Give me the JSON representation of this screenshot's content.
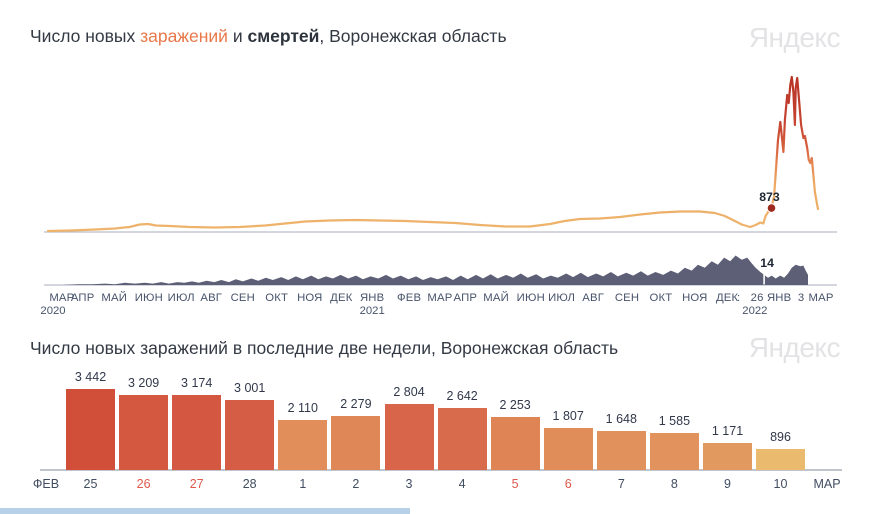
{
  "watermark": "Яндекс",
  "titles": {
    "c1": {
      "p1": "Число новых ",
      "em": "заражений",
      "p2": " и ",
      "strong": "смертей",
      "p3": ", Воронежская область"
    },
    "c2": "Число новых заражений в последние две недели, Воронежская область"
  },
  "colors": {
    "accent_infections": "#e8784a",
    "line_gradient": [
      [
        0,
        "#b83224"
      ],
      [
        0.3,
        "#c64431"
      ],
      [
        0.45,
        "#d55c3d"
      ],
      [
        0.58,
        "#e58a53"
      ],
      [
        0.7,
        "#ecaa64"
      ],
      [
        1,
        "#eeb46c"
      ]
    ],
    "deaths_fill": "#5d5f77",
    "marker_dot": "#9e2b20",
    "axis_line": "#b9bec8",
    "tick_text": "#47536b",
    "marker_text": "#1f2733",
    "weekend_label": "#e0584e",
    "watermark": "#e3e3e6"
  },
  "chart_data": [
    {
      "type": "line+area",
      "title": "Число новых заражений и смертей, Воронежская область",
      "legend": [
        "заражений",
        "смертей"
      ],
      "ylim_cases": [
        0,
        6000
      ],
      "ylim_deaths": [
        0,
        45
      ],
      "series": [
        {
          "name": "заражений",
          "points": [
            [
              0,
              19
            ],
            [
              0.029,
              37
            ],
            [
              0.061,
              74
            ],
            [
              0.087,
              112
            ],
            [
              0.106,
              167
            ],
            [
              0.119,
              260
            ],
            [
              0.13,
              279
            ],
            [
              0.14,
              223
            ],
            [
              0.158,
              205
            ],
            [
              0.184,
              167
            ],
            [
              0.217,
              149
            ],
            [
              0.249,
              167
            ],
            [
              0.282,
              223
            ],
            [
              0.308,
              298
            ],
            [
              0.334,
              372
            ],
            [
              0.366,
              409
            ],
            [
              0.399,
              428
            ],
            [
              0.431,
              409
            ],
            [
              0.464,
              390
            ],
            [
              0.496,
              353
            ],
            [
              0.529,
              316
            ],
            [
              0.561,
              242
            ],
            [
              0.594,
              186
            ],
            [
              0.626,
              186
            ],
            [
              0.652,
              279
            ],
            [
              0.671,
              390
            ],
            [
              0.691,
              465
            ],
            [
              0.717,
              483
            ],
            [
              0.743,
              539
            ],
            [
              0.769,
              632
            ],
            [
              0.795,
              706
            ],
            [
              0.821,
              744
            ],
            [
              0.847,
              744
            ],
            [
              0.866,
              688
            ],
            [
              0.879,
              576
            ],
            [
              0.892,
              390
            ],
            [
              0.901,
              260
            ],
            [
              0.912,
              167
            ],
            [
              0.919,
              242
            ],
            [
              0.925,
              335
            ],
            [
              0.929,
              297
            ],
            [
              0.932,
              576
            ],
            [
              0.936,
              762
            ],
            [
              0.9396,
              873
            ],
            [
              0.943,
              1320
            ],
            [
              0.945,
              2100
            ],
            [
              0.948,
              3400
            ],
            [
              0.951,
              4070
            ],
            [
              0.952,
              3848
            ],
            [
              0.955,
              2955
            ],
            [
              0.957,
              4145
            ],
            [
              0.96,
              5075
            ],
            [
              0.962,
              4777
            ],
            [
              0.964,
              5446
            ],
            [
              0.966,
              5744
            ],
            [
              0.968,
              5186
            ],
            [
              0.97,
              3959
            ],
            [
              0.971,
              5335
            ],
            [
              0.973,
              5707
            ],
            [
              0.975,
              5000
            ],
            [
              0.978,
              3959
            ],
            [
              0.981,
              3476
            ],
            [
              0.983,
              3550
            ],
            [
              0.986,
              3104
            ],
            [
              0.988,
              2658
            ],
            [
              0.99,
              2546
            ],
            [
              0.992,
              2732
            ],
            [
              0.994,
              2100
            ],
            [
              0.996,
              1468
            ],
            [
              0.999,
              985
            ],
            [
              1,
              836
            ]
          ]
        },
        {
          "name": "смертей",
          "points": [
            [
              0,
              0
            ],
            [
              0.018,
              0
            ],
            [
              0.039,
              1
            ],
            [
              0.057,
              1
            ],
            [
              0.074,
              2
            ],
            [
              0.087,
              1
            ],
            [
              0.1,
              3
            ],
            [
              0.113,
              2
            ],
            [
              0.126,
              3
            ],
            [
              0.136,
              2
            ],
            [
              0.147,
              4
            ],
            [
              0.157,
              2
            ],
            [
              0.168,
              4
            ],
            [
              0.177,
              3
            ],
            [
              0.187,
              5
            ],
            [
              0.196,
              3
            ],
            [
              0.206,
              6
            ],
            [
              0.216,
              4
            ],
            [
              0.225,
              7
            ],
            [
              0.235,
              4
            ],
            [
              0.244,
              8
            ],
            [
              0.253,
              5
            ],
            [
              0.264,
              9
            ],
            [
              0.273,
              6
            ],
            [
              0.283,
              10
            ],
            [
              0.292,
              7
            ],
            [
              0.303,
              11
            ],
            [
              0.312,
              7
            ],
            [
              0.322,
              12
            ],
            [
              0.331,
              8
            ],
            [
              0.342,
              13
            ],
            [
              0.351,
              8
            ],
            [
              0.361,
              12
            ],
            [
              0.37,
              9
            ],
            [
              0.38,
              14
            ],
            [
              0.39,
              9
            ],
            [
              0.4,
              13
            ],
            [
              0.409,
              8
            ],
            [
              0.419,
              12
            ],
            [
              0.429,
              9
            ],
            [
              0.439,
              14
            ],
            [
              0.448,
              9
            ],
            [
              0.458,
              13
            ],
            [
              0.468,
              8
            ],
            [
              0.478,
              12
            ],
            [
              0.487,
              7
            ],
            [
              0.497,
              11
            ],
            [
              0.506,
              8
            ],
            [
              0.517,
              12
            ],
            [
              0.526,
              7
            ],
            [
              0.536,
              13
            ],
            [
              0.545,
              8
            ],
            [
              0.556,
              14
            ],
            [
              0.565,
              9
            ],
            [
              0.575,
              15
            ],
            [
              0.584,
              9
            ],
            [
              0.595,
              14
            ],
            [
              0.604,
              10
            ],
            [
              0.614,
              16
            ],
            [
              0.623,
              10
            ],
            [
              0.634,
              15
            ],
            [
              0.643,
              9
            ],
            [
              0.653,
              13
            ],
            [
              0.662,
              10
            ],
            [
              0.673,
              16
            ],
            [
              0.682,
              11
            ],
            [
              0.692,
              17
            ],
            [
              0.701,
              11
            ],
            [
              0.712,
              16
            ],
            [
              0.721,
              12
            ],
            [
              0.731,
              18
            ],
            [
              0.74,
              12
            ],
            [
              0.751,
              17
            ],
            [
              0.76,
              13
            ],
            [
              0.77,
              19
            ],
            [
              0.779,
              13
            ],
            [
              0.789,
              18
            ],
            [
              0.799,
              14
            ],
            [
              0.809,
              20
            ],
            [
              0.818,
              16
            ],
            [
              0.827,
              24
            ],
            [
              0.836,
              20
            ],
            [
              0.844,
              28
            ],
            [
              0.853,
              24
            ],
            [
              0.862,
              33
            ],
            [
              0.87,
              28
            ],
            [
              0.878,
              38
            ],
            [
              0.886,
              33
            ],
            [
              0.893,
              41
            ],
            [
              0.901,
              35
            ],
            [
              0.908,
              38
            ],
            [
              0.914,
              30
            ],
            [
              0.919,
              24
            ],
            [
              0.925,
              18
            ],
            [
              0.93,
              14
            ],
            [
              0.935,
              10
            ],
            [
              0.94,
              13
            ],
            [
              0.945,
              9
            ],
            [
              0.951,
              13
            ],
            [
              0.956,
              10
            ],
            [
              0.961,
              16
            ],
            [
              0.966,
              24
            ],
            [
              0.971,
              28
            ],
            [
              0.977,
              26
            ],
            [
              0.981,
              27
            ],
            [
              0.984,
              20
            ],
            [
              0.987,
              14
            ]
          ]
        }
      ],
      "x_ticks": [
        {
          "t": "МАР",
          "f": 0.018,
          "year": "2020",
          "yf": 0.0065
        },
        {
          "t": "АПР",
          "f": 0.045
        },
        {
          "t": "МАЙ",
          "f": 0.086
        },
        {
          "t": "ИЮН",
          "f": 0.131
        },
        {
          "t": "ИЮЛ",
          "f": 0.173
        },
        {
          "t": "АВГ",
          "f": 0.212
        },
        {
          "t": "СЕН",
          "f": 0.253
        },
        {
          "t": "ОКТ",
          "f": 0.297
        },
        {
          "t": "НОЯ",
          "f": 0.34
        },
        {
          "t": "ДЕК",
          "f": 0.381
        },
        {
          "t": "ЯНВ",
          "f": 0.421,
          "year": "2021",
          "yf": 0.421
        },
        {
          "t": "ФЕВ",
          "f": 0.469
        },
        {
          "t": "МАР",
          "f": 0.509
        },
        {
          "t": "АПР",
          "f": 0.542
        },
        {
          "t": "МАЙ",
          "f": 0.582
        },
        {
          "t": "ИЮН",
          "f": 0.627
        },
        {
          "t": "ИЮЛ",
          "f": 0.667
        },
        {
          "t": "АВГ",
          "f": 0.708
        },
        {
          "t": "СЕН",
          "f": 0.752
        },
        {
          "t": "ОКТ",
          "f": 0.796
        },
        {
          "t": "НОЯ",
          "f": 0.84
        },
        {
          "t": "ДЕК",
          "f": 0.882
        },
        {
          "t": ":",
          "f": 0.897
        },
        {
          "t": "26 ЯНВ",
          "f": 0.939,
          "year": "2022",
          "yf": 0.918
        },
        {
          "t": "3",
          "f": 0.978
        },
        {
          "t": "МАР",
          "f": 1.004
        }
      ],
      "markers": [
        {
          "series": "заражений",
          "f": 0.9396,
          "value": 873,
          "label": "873"
        },
        {
          "series": "смертей",
          "f": 0.93,
          "value": 14,
          "label": "14"
        }
      ]
    },
    {
      "type": "bar",
      "title": "Число новых заражений в последние две недели, Воронежская область",
      "axis_prefix": "ФЕВ",
      "axis_suffix": "МАР",
      "categories": [
        "25",
        "26",
        "27",
        "28",
        "1",
        "2",
        "3",
        "4",
        "5",
        "6",
        "7",
        "8",
        "9",
        "10"
      ],
      "values": [
        3442,
        3209,
        3174,
        3001,
        2110,
        2279,
        2804,
        2642,
        2253,
        1807,
        1648,
        1585,
        1171,
        896
      ],
      "labels": [
        "3 442",
        "3 209",
        "3 174",
        "3 001",
        "2 110",
        "2 279",
        "2 804",
        "2 642",
        "2 253",
        "1 807",
        "1 648",
        "1 585",
        "1 171",
        "896"
      ],
      "bar_colors": [
        "#d14e39",
        "#d4573f",
        "#d45841",
        "#d65d45",
        "#e18e5a",
        "#df8756",
        "#d8654a",
        "#d96b4d",
        "#df8455",
        "#e08d59",
        "#e1915c",
        "#e1925d",
        "#e29960",
        "#eaba6f"
      ],
      "weekend_indices": [
        1,
        2,
        8,
        9
      ]
    }
  ]
}
